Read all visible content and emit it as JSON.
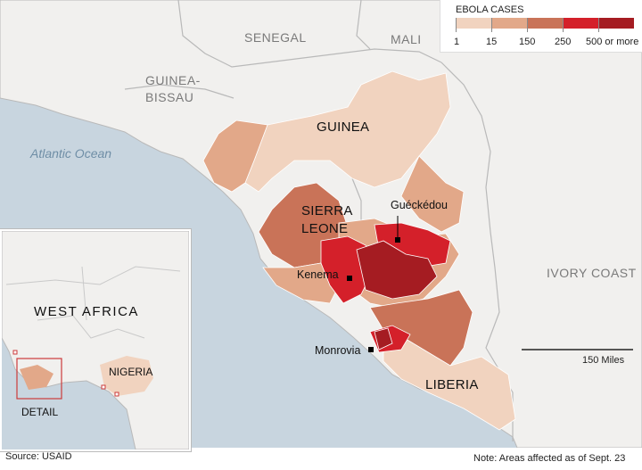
{
  "legend": {
    "title": "EBOLA CASES",
    "bins": [
      {
        "label": "1",
        "color": "#f1d3bf"
      },
      {
        "label": "15",
        "color": "#e2a889"
      },
      {
        "label": "150",
        "color": "#c97358"
      },
      {
        "label": "250",
        "color": "#d4202a"
      },
      {
        "label": "500 or more",
        "color": "#a51c22"
      }
    ]
  },
  "labels": {
    "senegal": "SENEGAL",
    "mali": "MALI",
    "guinea_bissau_1": "GUINEA-",
    "guinea_bissau_2": "BISSAU",
    "guinea": "GUINEA",
    "sierra_leone_1": "SIERRA",
    "sierra_leone_2": "LEONE",
    "ivory_coast": "IVORY COAST",
    "liberia": "LIBERIA",
    "atlantic": "Atlantic Ocean"
  },
  "cities": {
    "gueckedou": "Guéckédou",
    "kenema": "Kenema",
    "monrovia": "Monrovia"
  },
  "scale": {
    "label": "150 Miles"
  },
  "inset": {
    "region": "WEST AFRICA",
    "nigeria": "NIGERIA",
    "detail": "DETAIL"
  },
  "source": "Source: USAID",
  "note": "Note: Areas affected as of Sept. 23",
  "colors": {
    "ocean": "#c8d5df",
    "land": "#f1f0ee",
    "border": "#b9b9b9"
  }
}
